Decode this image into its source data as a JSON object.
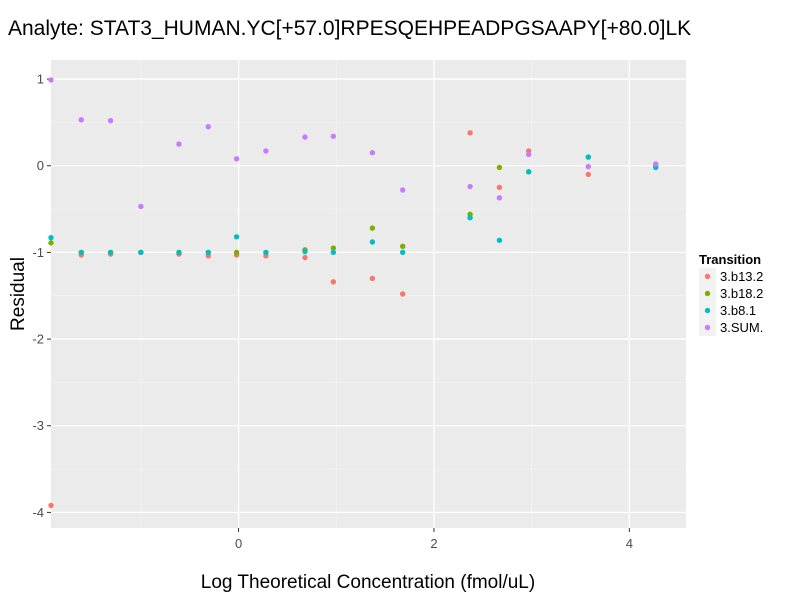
{
  "chart_data": {
    "type": "scatter",
    "title": "Analyte: STAT3_HUMAN.YC[+57.0]RPESQEHPEADPGSAAPY[+80.0]LK",
    "xlabel": "Log Theoretical Concentration (fmol/uL)",
    "ylabel": "Residual",
    "xlim": [
      -1.92,
      4.58
    ],
    "ylim": [
      -4.18,
      1.22
    ],
    "x_ticks": [
      0,
      2,
      4
    ],
    "y_ticks": [
      1,
      0,
      -1,
      -2,
      -3,
      -4
    ],
    "grid": true,
    "legend": {
      "title": "Transition",
      "position": "right"
    },
    "series": [
      {
        "name": "3.b13.2",
        "color": "#F8766D",
        "points": [
          [
            -1.92,
            -3.92
          ],
          [
            -1.61,
            -1.03
          ],
          [
            -1.31,
            -1.02
          ],
          [
            -1.0,
            -1.0
          ],
          [
            -0.61,
            -1.02
          ],
          [
            -0.31,
            -1.04
          ],
          [
            -0.02,
            -1.03
          ],
          [
            0.28,
            -1.04
          ],
          [
            0.68,
            -1.06
          ],
          [
            0.97,
            -1.34
          ],
          [
            1.37,
            -1.3
          ],
          [
            1.68,
            -1.48
          ],
          [
            2.37,
            0.38
          ],
          [
            2.67,
            -0.25
          ],
          [
            2.97,
            0.17
          ],
          [
            3.58,
            -0.1
          ],
          [
            4.27,
            0.01
          ]
        ]
      },
      {
        "name": "3.b18.2",
        "color": "#7CAE00",
        "points": [
          [
            -1.92,
            -0.89
          ],
          [
            -1.61,
            -1.0
          ],
          [
            -1.31,
            -1.0
          ],
          [
            -1.0,
            -1.0
          ],
          [
            -0.61,
            -1.0
          ],
          [
            -0.31,
            -1.0
          ],
          [
            -0.02,
            -1.0
          ],
          [
            0.28,
            -1.0
          ],
          [
            0.68,
            -0.97
          ],
          [
            0.97,
            -0.95
          ],
          [
            1.37,
            -0.72
          ],
          [
            1.68,
            -0.93
          ],
          [
            2.37,
            -0.56
          ],
          [
            2.67,
            -0.02
          ],
          [
            2.97,
            -0.07
          ],
          [
            3.58,
            0.1
          ],
          [
            4.27,
            -0.01
          ]
        ]
      },
      {
        "name": "3.b8.1",
        "color": "#00BFC4",
        "points": [
          [
            -1.92,
            -0.83
          ],
          [
            -1.61,
            -1.0
          ],
          [
            -1.31,
            -1.0
          ],
          [
            -1.0,
            -1.0
          ],
          [
            -0.61,
            -1.0
          ],
          [
            -0.31,
            -1.0
          ],
          [
            -0.02,
            -0.82
          ],
          [
            0.28,
            -1.0
          ],
          [
            0.68,
            -0.99
          ],
          [
            0.97,
            -1.0
          ],
          [
            1.37,
            -0.88
          ],
          [
            1.68,
            -1.0
          ],
          [
            2.37,
            -0.6
          ],
          [
            2.67,
            -0.86
          ],
          [
            2.97,
            -0.07
          ],
          [
            3.58,
            0.1
          ],
          [
            4.27,
            -0.02
          ]
        ]
      },
      {
        "name": "3.SUM.",
        "color": "#C77CFF",
        "points": [
          [
            -1.92,
            0.99
          ],
          [
            -1.61,
            0.53
          ],
          [
            -1.31,
            0.52
          ],
          [
            -1.0,
            -0.47
          ],
          [
            -0.61,
            0.25
          ],
          [
            -0.31,
            0.45
          ],
          [
            -0.02,
            0.08
          ],
          [
            0.28,
            0.17
          ],
          [
            0.68,
            0.33
          ],
          [
            0.97,
            0.34
          ],
          [
            1.37,
            0.15
          ],
          [
            1.68,
            -0.28
          ],
          [
            2.37,
            -0.24
          ],
          [
            2.67,
            -0.37
          ],
          [
            2.97,
            0.13
          ],
          [
            3.58,
            -0.01
          ],
          [
            4.27,
            0.02
          ]
        ]
      }
    ]
  }
}
